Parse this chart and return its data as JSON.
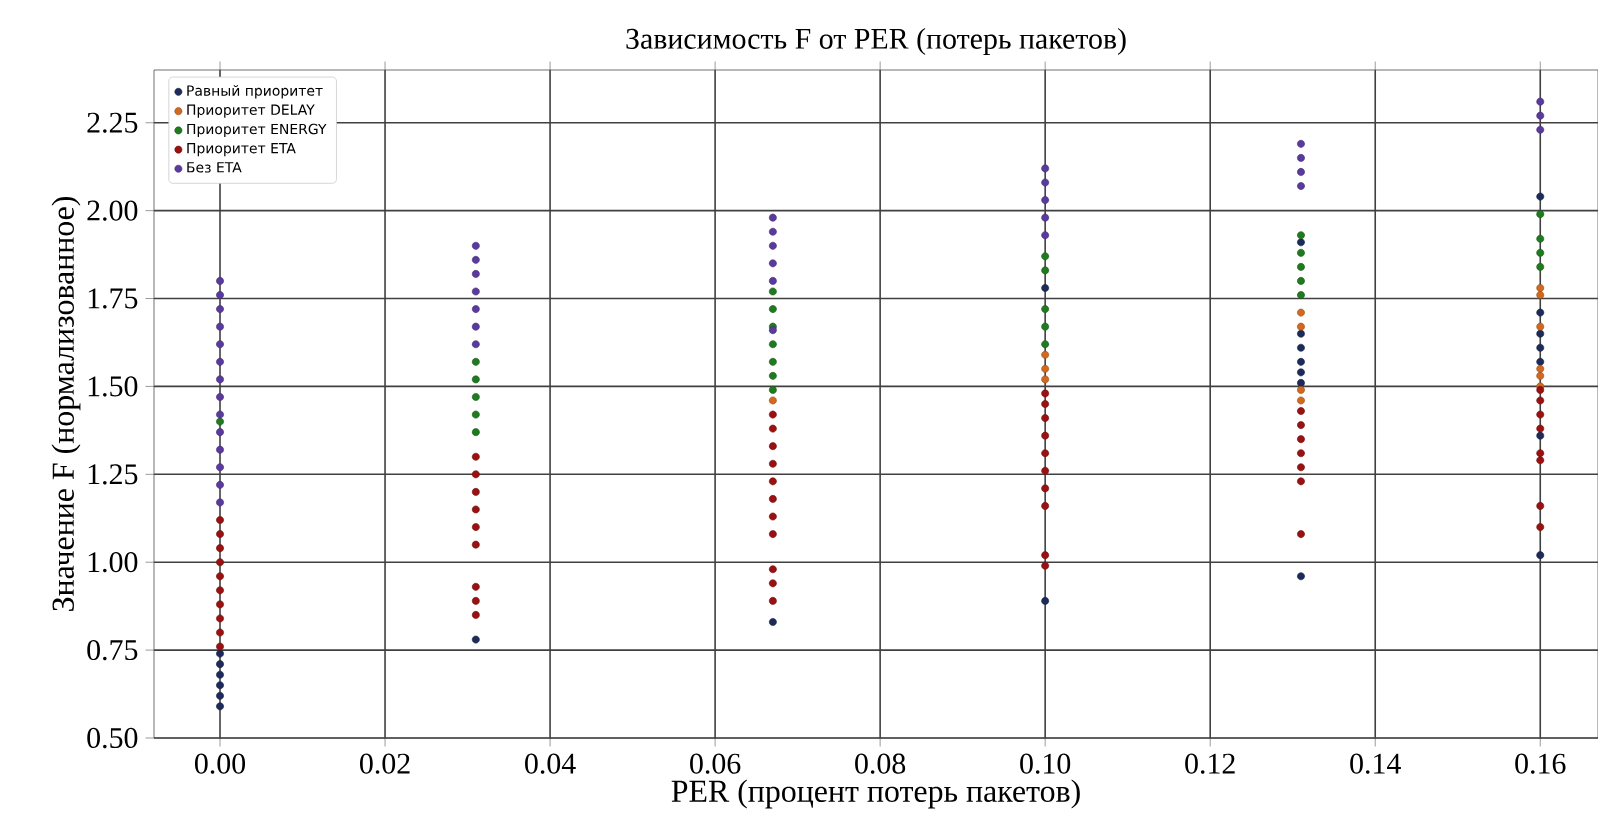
{
  "chart_data": {
    "type": "scatter",
    "title": "Зависимость F от PER (потерь пакетов)",
    "xlabel": "PER (процент потерь пакетов)",
    "ylabel": "Значение F (нормализованное)",
    "xlim": [
      -0.008,
      0.167
    ],
    "ylim": [
      0.5,
      2.4
    ],
    "xticks": [
      {
        "value": 0,
        "label": "0.00"
      },
      {
        "value": 0.02,
        "label": "0.02"
      },
      {
        "value": 0.04,
        "label": "0.04"
      },
      {
        "value": 0.06,
        "label": "0.06"
      },
      {
        "value": 0.08,
        "label": "0.08"
      },
      {
        "value": 0.1,
        "label": "0.10"
      },
      {
        "value": 0.12,
        "label": "0.12"
      },
      {
        "value": 0.14,
        "label": "0.14"
      },
      {
        "value": 0.16,
        "label": "0.16"
      }
    ],
    "yticks": [
      {
        "value": 0.5,
        "label": "0.50"
      },
      {
        "value": 0.75,
        "label": "0.75"
      },
      {
        "value": 1,
        "label": "1.00"
      },
      {
        "value": 1.25,
        "label": "1.25"
      },
      {
        "value": 1.5,
        "label": "1.50"
      },
      {
        "value": 1.75,
        "label": "1.75"
      },
      {
        "value": 2,
        "label": "2.00"
      },
      {
        "value": 2.25,
        "label": "2.25"
      }
    ],
    "grid": true,
    "legend": "top left",
    "marker": "circle",
    "series": [
      {
        "name": "Равный приоритет",
        "color": "#1c2b5a",
        "x": [
          0,
          0,
          0,
          0,
          0,
          0,
          0.031,
          0.067,
          0.1,
          0.1,
          0.131,
          0.131,
          0.131,
          0.131,
          0.131,
          0.131,
          0.131,
          0.16,
          0.16,
          0.16,
          0.16,
          0.16,
          0.16,
          0.16
        ],
        "values": [
          0.59,
          0.62,
          0.65,
          0.68,
          0.71,
          0.74,
          0.78,
          0.83,
          0.89,
          1.78,
          0.96,
          1.51,
          1.54,
          1.57,
          1.61,
          1.65,
          1.91,
          1.02,
          1.36,
          1.57,
          1.61,
          1.65,
          1.71,
          2.04
        ]
      },
      {
        "name": "Приоритет DELAY",
        "color": "#d2691e",
        "x": [
          0.067,
          0.1,
          0.1,
          0.1,
          0.131,
          0.131,
          0.131,
          0.131,
          0.16,
          0.16,
          0.16,
          0.16,
          0.16,
          0.16
        ],
        "values": [
          1.46,
          1.52,
          1.55,
          1.59,
          1.46,
          1.49,
          1.67,
          1.71,
          1.5,
          1.53,
          1.55,
          1.67,
          1.76,
          1.78
        ]
      },
      {
        "name": "Приоритет ENERGY",
        "color": "#1e7b1e",
        "x": [
          0,
          0.031,
          0.031,
          0.031,
          0.031,
          0.031,
          0.067,
          0.067,
          0.067,
          0.067,
          0.067,
          0.067,
          0.067,
          0.1,
          0.1,
          0.1,
          0.1,
          0.1,
          0.131,
          0.131,
          0.131,
          0.131,
          0.131,
          0.16,
          0.16,
          0.16,
          0.16
        ],
        "values": [
          1.4,
          1.37,
          1.42,
          1.47,
          1.52,
          1.57,
          1.49,
          1.53,
          1.57,
          1.62,
          1.67,
          1.72,
          1.77,
          1.62,
          1.67,
          1.72,
          1.83,
          1.87,
          1.76,
          1.8,
          1.84,
          1.88,
          1.93,
          1.84,
          1.88,
          1.92,
          1.99
        ]
      },
      {
        "name": "Приоритет ETA",
        "color": "#9b1010",
        "x": [
          0,
          0,
          0,
          0,
          0,
          0,
          0,
          0,
          0,
          0,
          0.031,
          0.031,
          0.031,
          0.031,
          0.031,
          0.031,
          0.031,
          0.031,
          0.031,
          0.067,
          0.067,
          0.067,
          0.067,
          0.067,
          0.067,
          0.067,
          0.067,
          0.067,
          0.067,
          0.067,
          0.1,
          0.1,
          0.1,
          0.1,
          0.1,
          0.1,
          0.1,
          0.1,
          0.1,
          0.1,
          0.131,
          0.131,
          0.131,
          0.131,
          0.131,
          0.131,
          0.131,
          0.16,
          0.16,
          0.16,
          0.16,
          0.16,
          0.16,
          0.16,
          0.16
        ],
        "values": [
          0.76,
          0.8,
          0.84,
          0.88,
          0.92,
          0.96,
          1.0,
          1.04,
          1.08,
          1.12,
          0.85,
          0.89,
          0.93,
          1.05,
          1.1,
          1.15,
          1.2,
          1.25,
          1.3,
          0.89,
          0.94,
          0.98,
          1.08,
          1.13,
          1.18,
          1.23,
          1.28,
          1.33,
          1.38,
          1.42,
          0.99,
          1.02,
          1.16,
          1.21,
          1.26,
          1.31,
          1.36,
          1.41,
          1.45,
          1.48,
          1.08,
          1.23,
          1.27,
          1.31,
          1.35,
          1.39,
          1.43,
          1.1,
          1.16,
          1.29,
          1.31,
          1.38,
          1.42,
          1.46,
          1.49
        ]
      },
      {
        "name": "Без ETA",
        "color": "#5b3a9e",
        "x": [
          0,
          0,
          0,
          0,
          0,
          0,
          0,
          0,
          0,
          0,
          0,
          0,
          0,
          0,
          0.031,
          0.031,
          0.031,
          0.031,
          0.031,
          0.031,
          0.031,
          0.067,
          0.067,
          0.067,
          0.067,
          0.067,
          0.067,
          0.1,
          0.1,
          0.1,
          0.1,
          0.1,
          0.131,
          0.131,
          0.131,
          0.131,
          0.16,
          0.16,
          0.16
        ],
        "values": [
          1.17,
          1.22,
          1.27,
          1.32,
          1.37,
          1.42,
          1.47,
          1.52,
          1.57,
          1.62,
          1.67,
          1.72,
          1.76,
          1.8,
          1.62,
          1.67,
          1.72,
          1.77,
          1.82,
          1.86,
          1.9,
          1.66,
          1.8,
          1.85,
          1.9,
          1.94,
          1.98,
          1.93,
          1.98,
          2.03,
          2.08,
          2.12,
          2.07,
          2.11,
          2.15,
          2.19,
          2.23,
          2.27,
          2.31
        ]
      }
    ]
  }
}
